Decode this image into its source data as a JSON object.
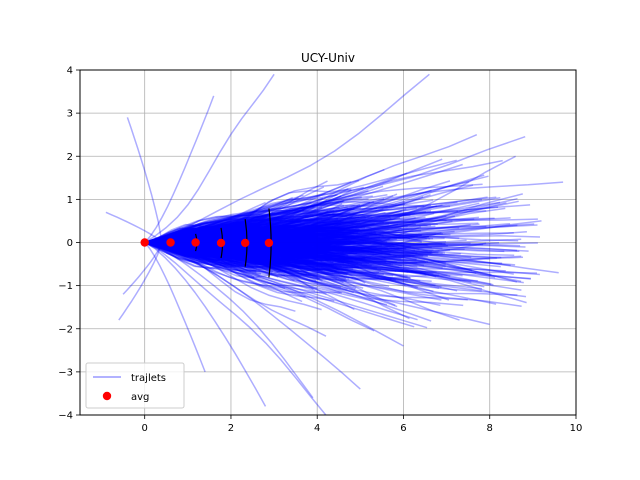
{
  "chart_data": {
    "type": "line",
    "title": "UCY-Univ",
    "xlabel": "",
    "ylabel": "",
    "xlim": [
      -1.5,
      10
    ],
    "ylim": [
      -4,
      4
    ],
    "xticks": [
      0,
      2,
      4,
      6,
      8,
      10
    ],
    "yticks": [
      -4,
      -3,
      -2,
      -1,
      0,
      1,
      2,
      3,
      4
    ],
    "grid": true,
    "legend_position": "lower-left",
    "colors": {
      "trajlets": "#0000ff",
      "avg": "#ff0000",
      "error_bars": "#000000",
      "grid": "#b0b0b0"
    },
    "series": [
      {
        "name": "trajlets",
        "kind": "line",
        "note_count": 900,
        "representative_endpoints": [
          [
            9.7,
            1.4
          ],
          [
            9.6,
            -0.7
          ],
          [
            9.2,
            0.5
          ],
          [
            8.9,
            -0.2
          ],
          [
            8.6,
            2.0
          ],
          [
            8.3,
            1.9
          ],
          [
            8.0,
            -1.9
          ],
          [
            7.7,
            2.5
          ],
          [
            7.3,
            -1.8
          ],
          [
            6.6,
            3.9
          ],
          [
            6.0,
            -2.4
          ],
          [
            5.0,
            -3.4
          ],
          [
            4.2,
            -4.0
          ],
          [
            3.9,
            -3.6
          ],
          [
            3.0,
            3.9
          ],
          [
            2.8,
            -3.8
          ],
          [
            1.6,
            3.4
          ],
          [
            1.4,
            -3.0
          ],
          [
            -0.4,
            2.9
          ],
          [
            -0.5,
            -1.2
          ],
          [
            -0.9,
            0.7
          ],
          [
            -0.6,
            -1.8
          ]
        ]
      },
      {
        "name": "avg",
        "kind": "scatter",
        "x": [
          0.0,
          0.6,
          1.18,
          1.77,
          2.33,
          2.88
        ],
        "y": [
          0.0,
          0.0,
          0.0,
          -0.01,
          -0.01,
          -0.01
        ],
        "error_y": [
          0.0,
          0.05,
          0.2,
          0.35,
          0.55,
          0.8
        ]
      }
    ],
    "legend": [
      {
        "label": "trajlets",
        "marker": "line",
        "color": "#0000ff"
      },
      {
        "label": "avg",
        "marker": "dot",
        "color": "#ff0000"
      }
    ]
  }
}
